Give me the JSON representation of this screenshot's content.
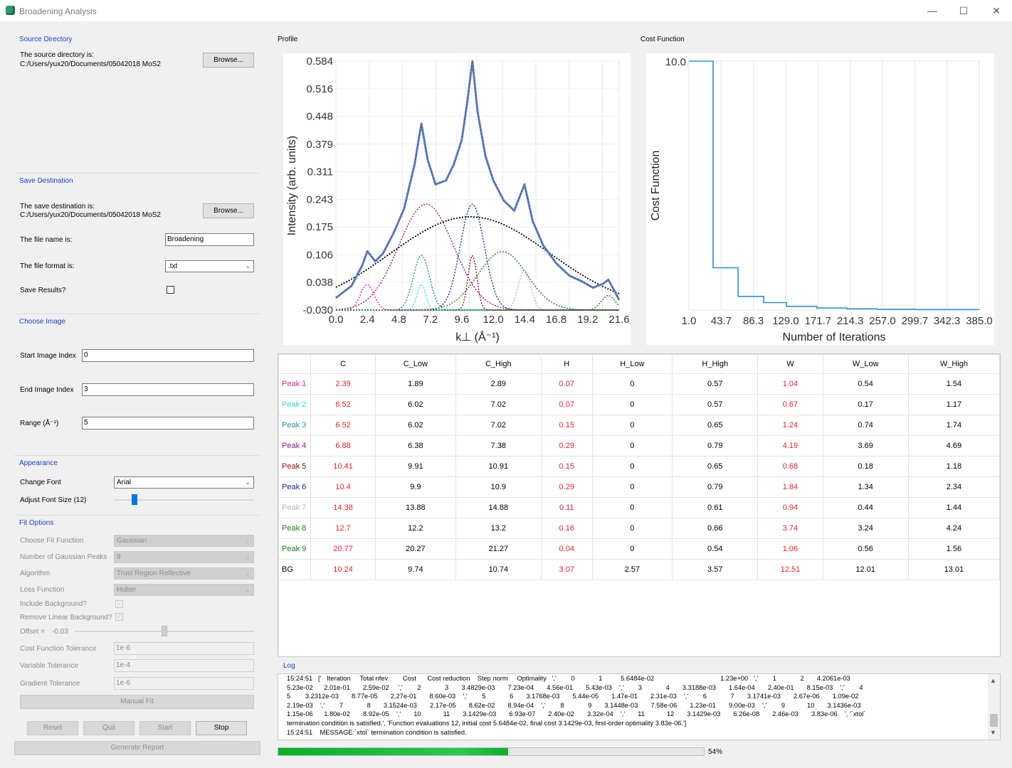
{
  "window": {
    "title": "Broadening Analysis",
    "minimize": "—",
    "maximize": "☐",
    "close": "✕"
  },
  "source": {
    "section": "Source Directory",
    "label": "The source directory is:",
    "path": "C:/Users/yux20/Documents/05042018 MoS2",
    "browse": "Browse..."
  },
  "save": {
    "section": "Save Destination",
    "label": "The save destination is:",
    "path": "C:/Users/yux20/Documents/05042018 MoS2",
    "browse": "Browse...",
    "filename_label": "The file name is:",
    "filename_value": "Broadening",
    "format_label": "The file format is:",
    "format_value": ".txt",
    "save_results_label": "Save Results?"
  },
  "image": {
    "section": "Choose Image",
    "start_label": "Start Image Index",
    "start_value": "0",
    "end_label": "End Image Index",
    "end_value": "3",
    "range_label": "Range (Å⁻¹)",
    "range_value": "5"
  },
  "appearance": {
    "section": "Appearance",
    "font_label": "Change Font",
    "font_value": "Arial",
    "size_label": "Adjust Font Size (12)",
    "font_size_slider_fraction": 0.13
  },
  "fit": {
    "section": "Fit Options",
    "function_label": "Choose Fit Function",
    "function_value": "Gaussian",
    "peaks_label": "Number of Gaussian Peaks",
    "peaks_value": "9",
    "algorithm_label": "Algorithm",
    "algorithm_value": "Trust Region Reflective",
    "loss_label": "Loss Function",
    "loss_value": "Huber",
    "background_label": "Include Background?",
    "linear_label": "Remove Linear Background?",
    "offset_label": "Offset =",
    "offset_value": "-0.03",
    "offset_slider_fraction": 0.5,
    "cost_tol_label": "Cost Function Tolerance",
    "cost_tol_value": "1e-6",
    "var_tol_label": "Variable Tolerance",
    "var_tol_value": "1e-4",
    "grad_tol_label": "Gradient Tolerance",
    "grad_tol_value": "1e-6",
    "manual_fit": "Manual Fit"
  },
  "buttons": {
    "reset": "Reset",
    "quit": "Quit",
    "start": "Start",
    "stop": "Stop",
    "report": "Generate Report"
  },
  "panels": {
    "profile": "Profile",
    "cost": "Cost Function",
    "log": "Log"
  },
  "colors": {
    "section": "#1a3fc4",
    "red": "#e8212e",
    "progress": "#06b025"
  },
  "table": {
    "columns": [
      "C",
      "C_Low",
      "C_High",
      "H",
      "H_Low",
      "H_High",
      "W",
      "W_Low",
      "W_High"
    ],
    "rows": [
      {
        "name": "Peak 1",
        "color": "#e0259e",
        "values": [
          "2.39",
          "1.89",
          "2.89",
          "0.07",
          "0",
          "0.57",
          "1.04",
          "0.54",
          "1.54"
        ]
      },
      {
        "name": "Peak 2",
        "color": "#30d5d8",
        "values": [
          "6.52",
          "6.02",
          "7.02",
          "0.07",
          "0",
          "0.57",
          "0.67",
          "0.17",
          "1.17"
        ]
      },
      {
        "name": "Peak 3",
        "color": "#2a8f8f",
        "values": [
          "6.52",
          "6.02",
          "7.02",
          "0.15",
          "0",
          "0.65",
          "1.24",
          "0.74",
          "1.74"
        ]
      },
      {
        "name": "Peak 4",
        "color": "#8b1c8b",
        "values": [
          "6.88",
          "6.38",
          "7.38",
          "0.29",
          "0",
          "0.79",
          "4.19",
          "3.69",
          "4.69"
        ]
      },
      {
        "name": "Peak 5",
        "color": "#8b1010",
        "values": [
          "10.41",
          "9.91",
          "10.91",
          "0.15",
          "0",
          "0.65",
          "0.68",
          "0.18",
          "1.18"
        ]
      },
      {
        "name": "Peak 6",
        "color": "#1c2a8b",
        "values": [
          "10.4",
          "9.9",
          "10.9",
          "0.29",
          "0",
          "0.79",
          "1.84",
          "1.34",
          "2.34"
        ]
      },
      {
        "name": "Peak 7",
        "color": "#b5b5b5",
        "values": [
          "14.38",
          "13.88",
          "14.88",
          "0.11",
          "0",
          "0.61",
          "0.94",
          "0.44",
          "1.44"
        ]
      },
      {
        "name": "Peak 8",
        "color": "#1f7a1f",
        "values": [
          "12.7",
          "12.2",
          "13.2",
          "0.16",
          "0",
          "0.66",
          "3.74",
          "3.24",
          "4.24"
        ]
      },
      {
        "name": "Peak 9",
        "color": "#1f7a1f",
        "values": [
          "20.77",
          "20.27",
          "21.27",
          "0.04",
          "0",
          "0.54",
          "1.06",
          "0.56",
          "1.56"
        ]
      },
      {
        "name": "BG",
        "color": "#000000",
        "values": [
          "10.24",
          "9.74",
          "10.74",
          "3.07",
          "2.57",
          "3.57",
          "12.51",
          "12.01",
          "13.01"
        ]
      }
    ],
    "red_columns": [
      0,
      3,
      6
    ]
  },
  "log": {
    "lines": [
      "15:24:51   ['   Iteration     Total nfev        Cost      Cost reduction    Step norm     Optimality   ','        0             1          5.6484e-02                                    1.23e+00   ','        1             2       4.2061e-03",
      "5.23e-02      2.01e-01       2.59e-02     ','        2             3       3.4829e-03       7.23e-04       4.56e-01       5.43e-03    ','        3             4       3.3188e-03       1.64e-04       2.40e-01       8.15e-03    ','        4",
      "5        3.2312e-03       8.77e-05       2.27e-01       8.60e-03    ','        5             6       3.1768e-03       5.44e-05       1.47e-01       2.31e-03    ','        6             7       3.1741e-03       2.67e-06       1.09e-02",
      "2.19e-03    ','        7             8       3.1524e-03       2.17e-05       8.62e-02       8.94e-04    ','        8             9       3.1448e-03       7.58e-06       1.23e-01       9.00e-03    ','        9            10       3.1436e-03",
      "1.15e-06      1.80e-02       8.92e-05    ','       10            11       3.1429e-03       6.93e-07       2.40e-02       3.32e-04    ','       11            12       3.1429e-03       6.26e-08       2.46e-03       3.83e-06    ', '`xtol`",
      "termination condition is satisfied.', 'Function evaluations 12, initial cost 5.6484e-02, final cost 3.1429e-03, first-order optimality 3.83e-06.']",
      "15:24:51    MESSAGE:`xtol` termination condition is satisfied."
    ]
  },
  "progress": {
    "value": 54,
    "label": "54%"
  },
  "chart_data": [
    {
      "type": "line",
      "title": "Profile",
      "xlabel": "k⊥ (Å⁻¹)",
      "ylabel": "Intensity (arb. units)",
      "xlim": [
        0,
        21.6
      ],
      "ylim": [
        -0.03,
        0.584
      ],
      "xticks": [
        "0.0",
        "2.4",
        "4.8",
        "7.2",
        "9.6",
        "12.0",
        "14.4",
        "16.8",
        "19.2",
        "21.6"
      ],
      "yticks": [
        "-0.030",
        "0.038",
        "0.106",
        "0.175",
        "0.243",
        "0.311",
        "0.379",
        "0.448",
        "0.516",
        "0.584"
      ],
      "peaks": [
        {
          "name": "Peak 1",
          "c": 2.39,
          "h": 0.07,
          "w": 1.04,
          "color": "#e0259e"
        },
        {
          "name": "Peak 2",
          "c": 6.52,
          "h": 0.07,
          "w": 0.67,
          "color": "#30d5d8"
        },
        {
          "name": "Peak 3",
          "c": 6.52,
          "h": 0.15,
          "w": 1.24,
          "color": "#2a8f8f"
        },
        {
          "name": "Peak 4",
          "c": 6.88,
          "h": 0.29,
          "w": 4.19,
          "color": "#8b1c8b"
        },
        {
          "name": "Peak 5",
          "c": 10.41,
          "h": 0.15,
          "w": 0.68,
          "color": "#8b1010"
        },
        {
          "name": "Peak 6",
          "c": 10.4,
          "h": 0.29,
          "w": 1.84,
          "color": "#1c2a8b"
        },
        {
          "name": "Peak 7",
          "c": 14.38,
          "h": 0.11,
          "w": 0.94,
          "color": "#b5b5b5"
        },
        {
          "name": "Peak 8",
          "c": 12.7,
          "h": 0.16,
          "w": 3.74,
          "color": "#1f7a1f"
        },
        {
          "name": "Peak 9",
          "c": 20.77,
          "h": 0.04,
          "w": 1.06,
          "color": "#1f7a1f"
        }
      ],
      "background": {
        "c": 10.24,
        "h": 3.07,
        "w": 12.51,
        "color": "#000000"
      },
      "data_series": {
        "name": "data",
        "color": "#2e9be0",
        "x": [
          0,
          1.2,
          2.0,
          2.4,
          3.0,
          3.6,
          4.4,
          5.2,
          6.0,
          6.52,
          7.0,
          7.6,
          8.4,
          9.0,
          9.6,
          10.0,
          10.41,
          10.8,
          11.4,
          12.0,
          12.8,
          13.6,
          14.38,
          15.0,
          15.8,
          16.8,
          17.8,
          18.8,
          19.6,
          20.4,
          20.77,
          21.2,
          21.6
        ],
        "y": [
          0.0,
          0.03,
          0.08,
          0.115,
          0.09,
          0.11,
          0.16,
          0.22,
          0.33,
          0.43,
          0.34,
          0.28,
          0.29,
          0.33,
          0.39,
          0.48,
          0.584,
          0.46,
          0.35,
          0.29,
          0.24,
          0.215,
          0.28,
          0.19,
          0.13,
          0.085,
          0.055,
          0.04,
          0.025,
          0.035,
          0.045,
          0.02,
          -0.005
        ]
      },
      "fit_color": "#e8212e"
    },
    {
      "type": "line",
      "title": "Cost Function",
      "xlabel": "Number of Iterations",
      "ylabel": "Cost Function",
      "xlim": [
        1,
        385
      ],
      "ylim": [
        0,
        10
      ],
      "xticks": [
        "1.0",
        "43.7",
        "86.3",
        "129.0",
        "171.7",
        "214.3",
        "257.0",
        "299.7",
        "342.3",
        "385.0"
      ],
      "yticks": [
        "10.0"
      ],
      "series": [
        {
          "name": "cost",
          "color": "#2e8fd6",
          "x": [
            1,
            33,
            33,
            66,
            66,
            100,
            100,
            130,
            130,
            170,
            170,
            210,
            210,
            250,
            250,
            300,
            300,
            385
          ],
          "y": [
            10,
            10,
            1.7,
            1.7,
            0.55,
            0.55,
            0.3,
            0.3,
            0.15,
            0.15,
            0.08,
            0.08,
            0.05,
            0.05,
            0.03,
            0.03,
            0.02,
            0.02
          ]
        }
      ]
    }
  ]
}
